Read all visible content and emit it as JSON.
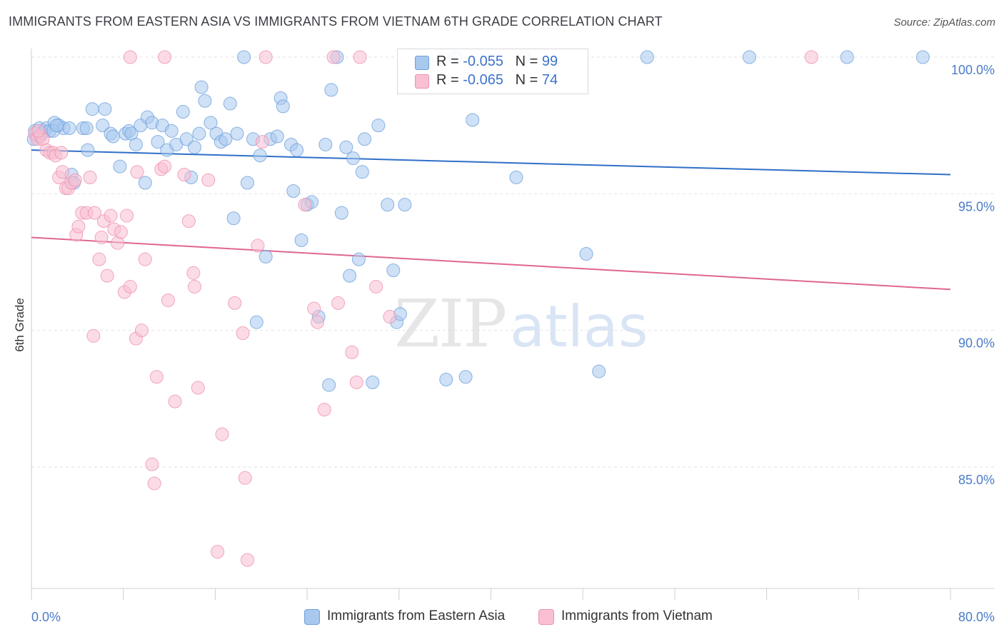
{
  "header": {
    "title": "IMMIGRANTS FROM EASTERN ASIA VS IMMIGRANTS FROM VIETNAM 6TH GRADE CORRELATION CHART",
    "source": "Source: ZipAtlas.com"
  },
  "watermark": {
    "zip": "ZIP",
    "atlas": "atlas"
  },
  "legend_top": {
    "rows": [
      {
        "r_label": "R =",
        "r_value": "-0.055",
        "n_label": "N =",
        "n_value": "99"
      },
      {
        "r_label": "R =",
        "r_value": "-0.065",
        "n_label": "N =",
        "n_value": "74"
      }
    ]
  },
  "colors": {
    "series_blue": "#6fa0dc",
    "series_blue_fill": "#a8c8ee",
    "series_pink": "#f090b0",
    "series_pink_fill": "#f8c0d2",
    "trend_blue": "#2f6fc8",
    "trend_pink": "#e06690",
    "tick_text": "#4a7cc7",
    "grid": "#e2e2e2"
  },
  "chart_data": {
    "type": "scatter",
    "title": "IMMIGRANTS FROM EASTERN ASIA VS IMMIGRANTS FROM VIETNAM 6TH GRADE CORRELATION CHART",
    "xlabel": "",
    "ylabel": "6th Grade",
    "xlim": [
      0,
      80
    ],
    "ylim": [
      80.7,
      100.9
    ],
    "x_tick_labels": [
      "0.0%",
      "80.0%"
    ],
    "y_ticks": [
      85,
      90,
      95,
      100
    ],
    "y_tick_labels": [
      "85.0%",
      "90.0%",
      "95.0%",
      "100.0%"
    ],
    "grid": true,
    "legend": "bottom",
    "series": [
      {
        "name": "Immigrants from Eastern Asia",
        "color": "#6fa0dc",
        "trend": {
          "x": [
            0,
            80
          ],
          "y": [
            96.6,
            95.7
          ]
        },
        "points": [
          [
            0.3,
            97.3
          ],
          [
            0.5,
            97.1
          ],
          [
            0.7,
            97.4
          ],
          [
            0.9,
            97.2
          ],
          [
            1.1,
            97.3
          ],
          [
            1.3,
            97.4
          ],
          [
            1.6,
            97.3
          ],
          [
            2.0,
            97.6
          ],
          [
            2.4,
            97.5
          ],
          [
            2.8,
            97.4
          ],
          [
            3.3,
            97.4
          ],
          [
            4.5,
            97.4
          ],
          [
            4.8,
            97.4
          ],
          [
            3.5,
            95.7
          ],
          [
            3.7,
            95.4
          ],
          [
            4.9,
            96.6
          ],
          [
            5.3,
            98.1
          ],
          [
            6.4,
            98.1
          ],
          [
            6.2,
            97.5
          ],
          [
            6.9,
            97.2
          ],
          [
            7.1,
            97.1
          ],
          [
            7.7,
            96.0
          ],
          [
            8.2,
            97.2
          ],
          [
            8.5,
            97.3
          ],
          [
            8.7,
            97.2
          ],
          [
            9.1,
            96.8
          ],
          [
            9.5,
            97.5
          ],
          [
            9.9,
            95.4
          ],
          [
            10.1,
            97.8
          ],
          [
            10.5,
            97.6
          ],
          [
            11.0,
            96.9
          ],
          [
            11.4,
            97.5
          ],
          [
            11.8,
            96.6
          ],
          [
            12.2,
            97.3
          ],
          [
            12.6,
            96.8
          ],
          [
            13.2,
            98.0
          ],
          [
            13.5,
            97.0
          ],
          [
            13.9,
            95.6
          ],
          [
            14.2,
            96.7
          ],
          [
            14.8,
            98.9
          ],
          [
            15.1,
            98.4
          ],
          [
            15.6,
            97.6
          ],
          [
            16.1,
            97.2
          ],
          [
            16.5,
            96.9
          ],
          [
            16.9,
            97.0
          ],
          [
            17.3,
            98.3
          ],
          [
            17.6,
            94.1
          ],
          [
            17.9,
            97.2
          ],
          [
            18.5,
            100.0
          ],
          [
            18.8,
            95.4
          ],
          [
            19.3,
            97.0
          ],
          [
            19.6,
            90.3
          ],
          [
            19.9,
            96.4
          ],
          [
            20.4,
            92.7
          ],
          [
            20.8,
            97.0
          ],
          [
            21.4,
            97.1
          ],
          [
            21.7,
            98.5
          ],
          [
            21.9,
            98.2
          ],
          [
            22.6,
            96.8
          ],
          [
            22.8,
            95.1
          ],
          [
            23.1,
            96.6
          ],
          [
            23.5,
            93.3
          ],
          [
            24.0,
            94.6
          ],
          [
            24.4,
            94.7
          ],
          [
            25.0,
            90.5
          ],
          [
            25.6,
            96.8
          ],
          [
            25.9,
            88.0
          ],
          [
            26.1,
            98.8
          ],
          [
            26.6,
            100.0
          ],
          [
            27.0,
            94.3
          ],
          [
            27.4,
            96.7
          ],
          [
            27.7,
            92.0
          ],
          [
            28.0,
            96.3
          ],
          [
            28.5,
            92.6
          ],
          [
            28.8,
            95.8
          ],
          [
            29.0,
            97.0
          ],
          [
            29.7,
            88.1
          ],
          [
            30.2,
            97.5
          ],
          [
            31.0,
            94.6
          ],
          [
            31.5,
            92.2
          ],
          [
            31.8,
            90.3
          ],
          [
            32.1,
            90.6
          ],
          [
            32.5,
            94.6
          ],
          [
            36.1,
            88.2
          ],
          [
            36.9,
            100.0
          ],
          [
            37.8,
            88.3
          ],
          [
            38.4,
            97.7
          ],
          [
            42.2,
            95.6
          ],
          [
            42.9,
            100.0
          ],
          [
            48.3,
            92.8
          ],
          [
            49.4,
            88.5
          ],
          [
            53.6,
            100.0
          ],
          [
            62.5,
            100.0
          ],
          [
            71.0,
            100.0
          ],
          [
            77.6,
            100.0
          ],
          [
            0.2,
            97.0
          ],
          [
            1.9,
            97.3
          ],
          [
            2.2,
            97.5
          ],
          [
            14.6,
            97.2
          ]
        ]
      },
      {
        "name": "Immigrants from Vietnam",
        "color": "#f090b0",
        "trend": {
          "x": [
            0,
            80
          ],
          "y": [
            93.4,
            91.5
          ]
        },
        "points": [
          [
            0.3,
            97.2
          ],
          [
            0.5,
            97.0
          ],
          [
            0.8,
            97.1
          ],
          [
            1.0,
            97.0
          ],
          [
            1.3,
            96.6
          ],
          [
            1.6,
            96.5
          ],
          [
            1.9,
            96.5
          ],
          [
            2.1,
            96.4
          ],
          [
            2.4,
            95.6
          ],
          [
            2.7,
            95.8
          ],
          [
            3.0,
            95.2
          ],
          [
            3.2,
            95.2
          ],
          [
            3.5,
            95.4
          ],
          [
            3.8,
            95.5
          ],
          [
            3.9,
            93.5
          ],
          [
            4.1,
            93.8
          ],
          [
            4.4,
            94.3
          ],
          [
            4.8,
            94.3
          ],
          [
            5.1,
            95.6
          ],
          [
            5.5,
            94.3
          ],
          [
            5.9,
            92.6
          ],
          [
            6.1,
            93.4
          ],
          [
            6.3,
            94.0
          ],
          [
            6.6,
            92.0
          ],
          [
            6.9,
            94.2
          ],
          [
            7.2,
            93.7
          ],
          [
            7.5,
            93.2
          ],
          [
            7.8,
            93.6
          ],
          [
            8.1,
            91.4
          ],
          [
            8.3,
            94.2
          ],
          [
            8.6,
            91.6
          ],
          [
            5.4,
            89.8
          ],
          [
            9.1,
            89.7
          ],
          [
            9.6,
            90.0
          ],
          [
            9.2,
            95.8
          ],
          [
            9.9,
            92.6
          ],
          [
            10.5,
            85.1
          ],
          [
            10.7,
            84.4
          ],
          [
            10.9,
            88.3
          ],
          [
            11.3,
            95.9
          ],
          [
            11.6,
            96.0
          ],
          [
            11.9,
            91.1
          ],
          [
            12.5,
            87.4
          ],
          [
            13.3,
            95.7
          ],
          [
            13.7,
            94.0
          ],
          [
            14.1,
            92.1
          ],
          [
            14.2,
            91.6
          ],
          [
            14.5,
            87.9
          ],
          [
            15.4,
            95.5
          ],
          [
            16.2,
            81.9
          ],
          [
            16.6,
            86.2
          ],
          [
            17.7,
            91.0
          ],
          [
            18.4,
            89.9
          ],
          [
            18.6,
            84.6
          ],
          [
            18.8,
            81.6
          ],
          [
            19.7,
            93.1
          ],
          [
            20.1,
            96.9
          ],
          [
            23.8,
            94.6
          ],
          [
            24.6,
            90.8
          ],
          [
            24.9,
            90.3
          ],
          [
            25.5,
            87.1
          ],
          [
            26.3,
            100.0
          ],
          [
            26.7,
            91.0
          ],
          [
            27.9,
            89.2
          ],
          [
            28.3,
            88.1
          ],
          [
            28.6,
            100.0
          ],
          [
            30.0,
            91.6
          ],
          [
            31.2,
            90.5
          ],
          [
            8.6,
            100.0
          ],
          [
            11.6,
            100.0
          ],
          [
            20.4,
            100.0
          ],
          [
            67.9,
            100.0
          ],
          [
            0.6,
            97.3
          ],
          [
            2.6,
            96.5
          ]
        ]
      }
    ]
  },
  "legend_bottom": {
    "items": [
      {
        "label": "Immigrants from Eastern Asia"
      },
      {
        "label": "Immigrants from Vietnam"
      }
    ]
  }
}
